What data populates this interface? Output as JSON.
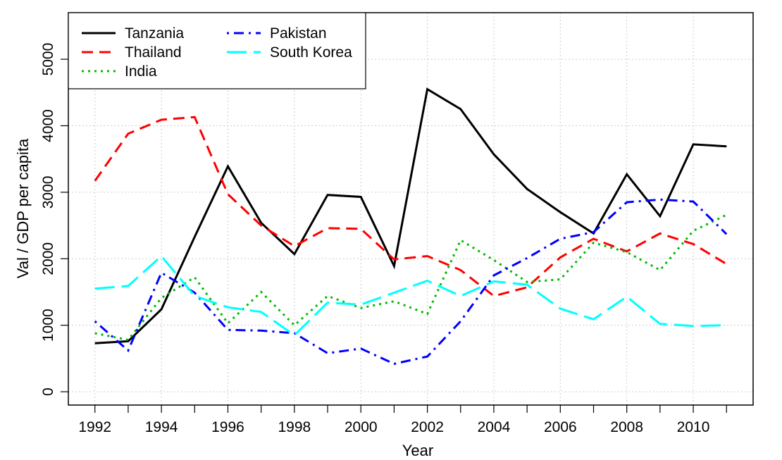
{
  "chart_data": {
    "type": "line",
    "title": "",
    "xlabel": "Year",
    "ylabel": "Val / GDP per capita",
    "xlim": [
      1991.2,
      2011.8
    ],
    "ylim": [
      -200,
      5700
    ],
    "x_ticks": [
      1992,
      1994,
      1996,
      1998,
      2000,
      2002,
      2004,
      2006,
      2008,
      2010
    ],
    "y_ticks": [
      0,
      1000,
      2000,
      3000,
      4000,
      5000
    ],
    "grid": true,
    "legend_position": "top-left",
    "x": [
      1992,
      1993,
      1994,
      1995,
      1996,
      1997,
      1998,
      1999,
      2000,
      2001,
      2002,
      2003,
      2004,
      2005,
      2006,
      2007,
      2008,
      2009,
      2010,
      2011
    ],
    "series": [
      {
        "name": "Tanzania",
        "color": "#000000",
        "dash": "solid",
        "values": [
          730,
          760,
          1240,
          2330,
          3390,
          2540,
          2070,
          2960,
          2930,
          1890,
          4550,
          4250,
          3570,
          3050,
          2700,
          2380,
          3270,
          2640,
          3720,
          3690
        ]
      },
      {
        "name": "Thailand",
        "color": "#ff0000",
        "dash": "dashed",
        "values": [
          3170,
          3880,
          4090,
          4130,
          2970,
          2500,
          2190,
          2460,
          2450,
          1990,
          2040,
          1830,
          1440,
          1570,
          2020,
          2300,
          2110,
          2380,
          2220,
          1920
        ]
      },
      {
        "name": "India",
        "color": "#00bb00",
        "dash": "dotted",
        "values": [
          880,
          780,
          1410,
          1720,
          1030,
          1500,
          1000,
          1440,
          1260,
          1360,
          1170,
          2280,
          1980,
          1650,
          1690,
          2240,
          2100,
          1830,
          2420,
          2660
        ]
      },
      {
        "name": "Pakistan",
        "color": "#0000ff",
        "dash": "dotdash",
        "values": [
          1060,
          620,
          1790,
          1490,
          930,
          920,
          880,
          580,
          650,
          420,
          530,
          1060,
          1750,
          2010,
          2300,
          2400,
          2850,
          2890,
          2860,
          2370
        ]
      },
      {
        "name": "South Korea",
        "color": "#00ffff",
        "dash": "longdash",
        "values": [
          1550,
          1590,
          2040,
          1440,
          1270,
          1200,
          850,
          1340,
          1310,
          1490,
          1670,
          1440,
          1660,
          1610,
          1250,
          1090,
          1430,
          1020,
          990,
          1000
        ]
      }
    ]
  }
}
